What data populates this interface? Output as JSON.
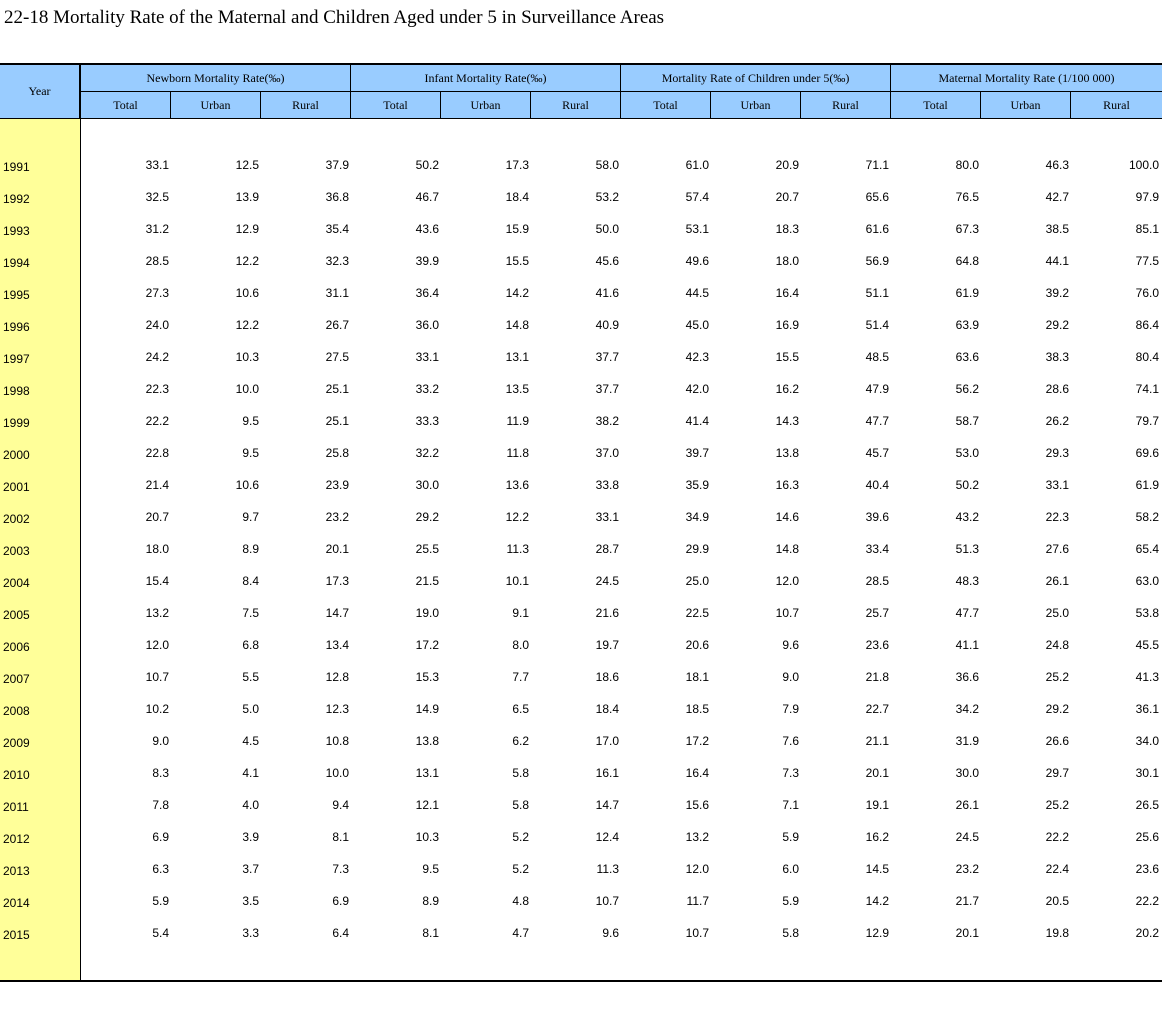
{
  "title": "22-18  Mortality Rate of the Maternal and Children Aged under 5 in Surveillance Areas",
  "year_header": "Year",
  "groups": [
    "Newborn Mortality Rate(‰)",
    "Infant Mortality Rate(‰)",
    "Mortality Rate of Children under 5(‰)",
    "Maternal Mortality Rate (1/100 000)"
  ],
  "subheaders": [
    "Total",
    "Urban",
    "Rural",
    "Total",
    "Urban",
    "Rural",
    "Total",
    "Urban",
    "Rural",
    "Total",
    "Urban",
    "Rural"
  ],
  "rows": [
    {
      "year": "1991",
      "values": [
        "33.1",
        "12.5",
        "37.9",
        "50.2",
        "17.3",
        "58.0",
        "61.0",
        "20.9",
        "71.1",
        "80.0",
        "46.3",
        "100.0"
      ]
    },
    {
      "year": "1992",
      "values": [
        "32.5",
        "13.9",
        "36.8",
        "46.7",
        "18.4",
        "53.2",
        "57.4",
        "20.7",
        "65.6",
        "76.5",
        "42.7",
        "97.9"
      ]
    },
    {
      "year": "1993",
      "values": [
        "31.2",
        "12.9",
        "35.4",
        "43.6",
        "15.9",
        "50.0",
        "53.1",
        "18.3",
        "61.6",
        "67.3",
        "38.5",
        "85.1"
      ]
    },
    {
      "year": "1994",
      "values": [
        "28.5",
        "12.2",
        "32.3",
        "39.9",
        "15.5",
        "45.6",
        "49.6",
        "18.0",
        "56.9",
        "64.8",
        "44.1",
        "77.5"
      ]
    },
    {
      "year": "1995",
      "values": [
        "27.3",
        "10.6",
        "31.1",
        "36.4",
        "14.2",
        "41.6",
        "44.5",
        "16.4",
        "51.1",
        "61.9",
        "39.2",
        "76.0"
      ]
    },
    {
      "year": "1996",
      "values": [
        "24.0",
        "12.2",
        "26.7",
        "36.0",
        "14.8",
        "40.9",
        "45.0",
        "16.9",
        "51.4",
        "63.9",
        "29.2",
        "86.4"
      ]
    },
    {
      "year": "1997",
      "values": [
        "24.2",
        "10.3",
        "27.5",
        "33.1",
        "13.1",
        "37.7",
        "42.3",
        "15.5",
        "48.5",
        "63.6",
        "38.3",
        "80.4"
      ]
    },
    {
      "year": "1998",
      "values": [
        "22.3",
        "10.0",
        "25.1",
        "33.2",
        "13.5",
        "37.7",
        "42.0",
        "16.2",
        "47.9",
        "56.2",
        "28.6",
        "74.1"
      ]
    },
    {
      "year": "1999",
      "values": [
        "22.2",
        "9.5",
        "25.1",
        "33.3",
        "11.9",
        "38.2",
        "41.4",
        "14.3",
        "47.7",
        "58.7",
        "26.2",
        "79.7"
      ]
    },
    {
      "year": "2000",
      "values": [
        "22.8",
        "9.5",
        "25.8",
        "32.2",
        "11.8",
        "37.0",
        "39.7",
        "13.8",
        "45.7",
        "53.0",
        "29.3",
        "69.6"
      ]
    },
    {
      "year": "2001",
      "values": [
        "21.4",
        "10.6",
        "23.9",
        "30.0",
        "13.6",
        "33.8",
        "35.9",
        "16.3",
        "40.4",
        "50.2",
        "33.1",
        "61.9"
      ]
    },
    {
      "year": "2002",
      "values": [
        "20.7",
        "9.7",
        "23.2",
        "29.2",
        "12.2",
        "33.1",
        "34.9",
        "14.6",
        "39.6",
        "43.2",
        "22.3",
        "58.2"
      ]
    },
    {
      "year": "2003",
      "values": [
        "18.0",
        "8.9",
        "20.1",
        "25.5",
        "11.3",
        "28.7",
        "29.9",
        "14.8",
        "33.4",
        "51.3",
        "27.6",
        "65.4"
      ]
    },
    {
      "year": "2004",
      "values": [
        "15.4",
        "8.4",
        "17.3",
        "21.5",
        "10.1",
        "24.5",
        "25.0",
        "12.0",
        "28.5",
        "48.3",
        "26.1",
        "63.0"
      ]
    },
    {
      "year": "2005",
      "values": [
        "13.2",
        "7.5",
        "14.7",
        "19.0",
        "9.1",
        "21.6",
        "22.5",
        "10.7",
        "25.7",
        "47.7",
        "25.0",
        "53.8"
      ]
    },
    {
      "year": "2006",
      "values": [
        "12.0",
        "6.8",
        "13.4",
        "17.2",
        "8.0",
        "19.7",
        "20.6",
        "9.6",
        "23.6",
        "41.1",
        "24.8",
        "45.5"
      ]
    },
    {
      "year": "2007",
      "values": [
        "10.7",
        "5.5",
        "12.8",
        "15.3",
        "7.7",
        "18.6",
        "18.1",
        "9.0",
        "21.8",
        "36.6",
        "25.2",
        "41.3"
      ]
    },
    {
      "year": "2008",
      "values": [
        "10.2",
        "5.0",
        "12.3",
        "14.9",
        "6.5",
        "18.4",
        "18.5",
        "7.9",
        "22.7",
        "34.2",
        "29.2",
        "36.1"
      ]
    },
    {
      "year": "2009",
      "values": [
        "9.0",
        "4.5",
        "10.8",
        "13.8",
        "6.2",
        "17.0",
        "17.2",
        "7.6",
        "21.1",
        "31.9",
        "26.6",
        "34.0"
      ]
    },
    {
      "year": "2010",
      "values": [
        "8.3",
        "4.1",
        "10.0",
        "13.1",
        "5.8",
        "16.1",
        "16.4",
        "7.3",
        "20.1",
        "30.0",
        "29.7",
        "30.1"
      ]
    },
    {
      "year": "2011",
      "values": [
        "7.8",
        "4.0",
        "9.4",
        "12.1",
        "5.8",
        "14.7",
        "15.6",
        "7.1",
        "19.1",
        "26.1",
        "25.2",
        "26.5"
      ]
    },
    {
      "year": "2012",
      "values": [
        "6.9",
        "3.9",
        "8.1",
        "10.3",
        "5.2",
        "12.4",
        "13.2",
        "5.9",
        "16.2",
        "24.5",
        "22.2",
        "25.6"
      ]
    },
    {
      "year": "2013",
      "values": [
        "6.3",
        "3.7",
        "7.3",
        "9.5",
        "5.2",
        "11.3",
        "12.0",
        "6.0",
        "14.5",
        "23.2",
        "22.4",
        "23.6"
      ]
    },
    {
      "year": "2014",
      "values": [
        "5.9",
        "3.5",
        "6.9",
        "8.9",
        "4.8",
        "10.7",
        "11.7",
        "5.9",
        "14.2",
        "21.7",
        "20.5",
        "22.2"
      ]
    },
    {
      "year": "2015",
      "values": [
        "5.4",
        "3.3",
        "6.4",
        "8.1",
        "4.7",
        "9.6",
        "10.7",
        "5.8",
        "12.9",
        "20.1",
        "19.8",
        "20.2"
      ]
    }
  ]
}
